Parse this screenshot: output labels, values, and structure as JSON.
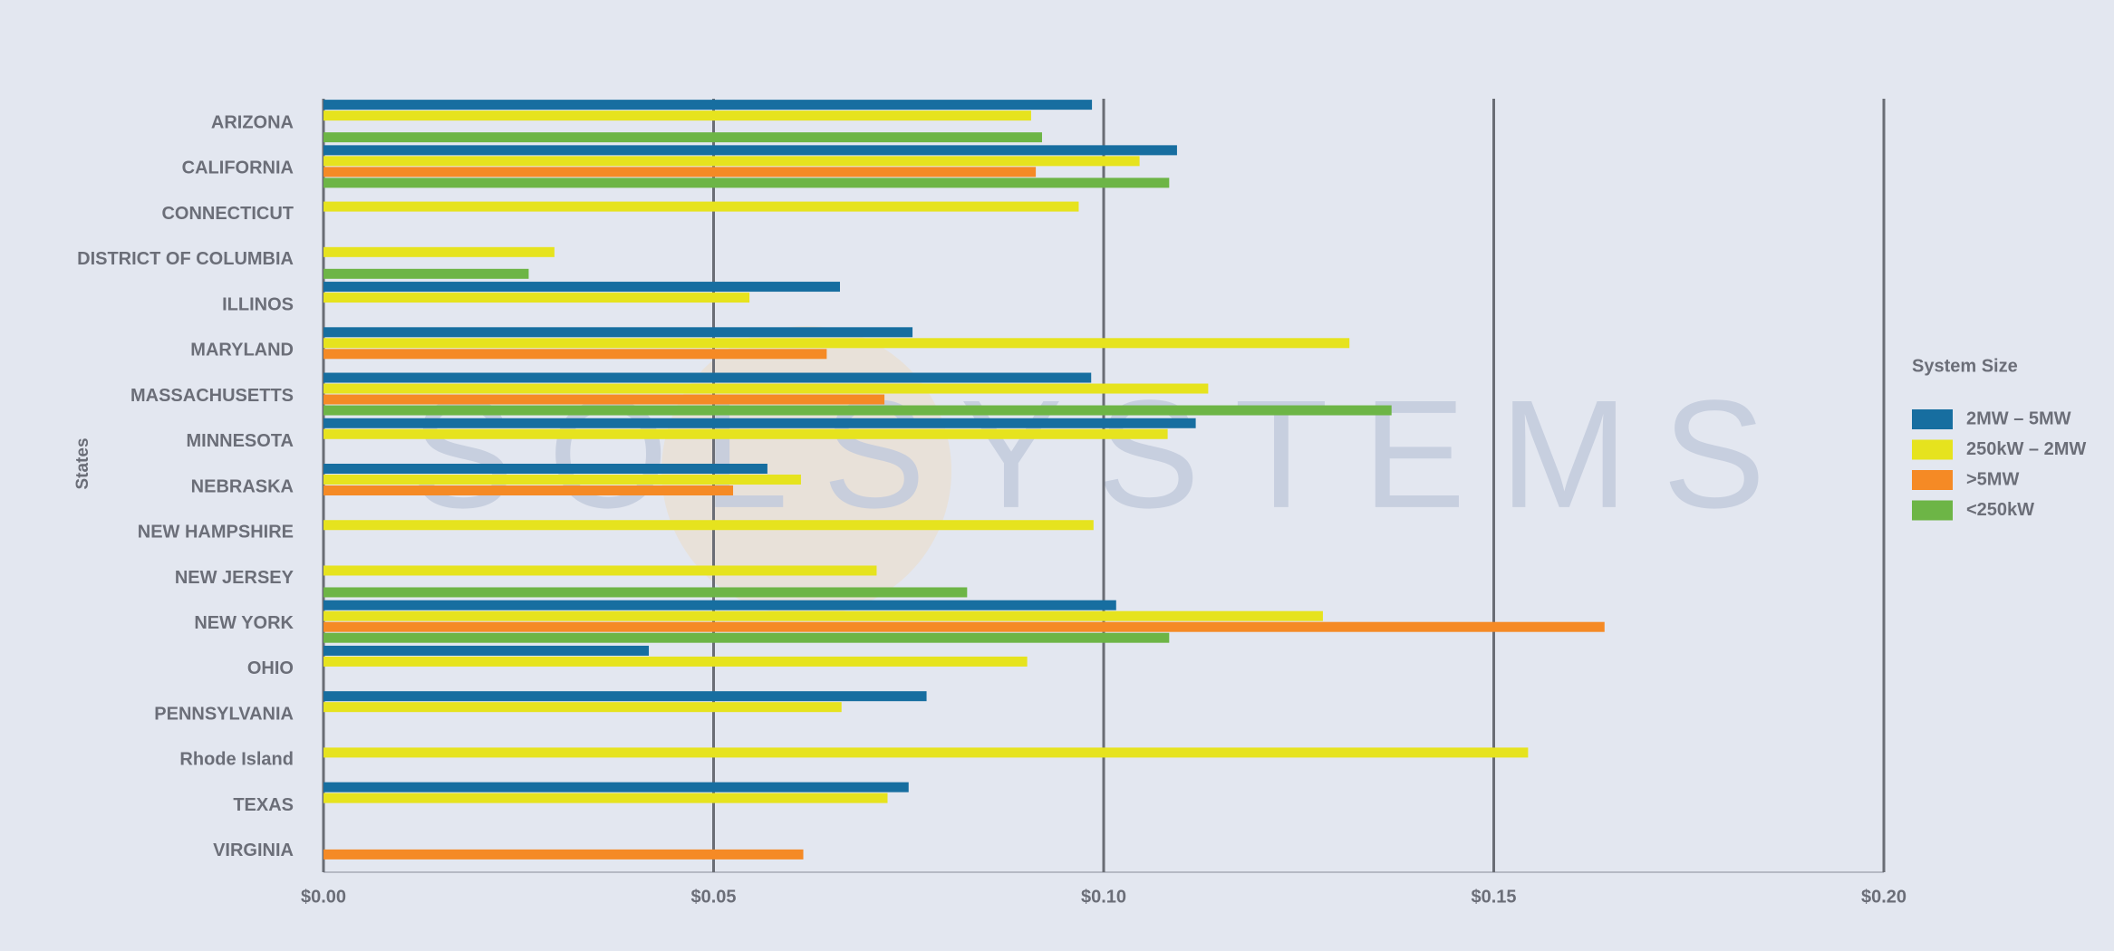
{
  "chart_data": {
    "type": "hbar",
    "watermark": "SOLSYSTEMS",
    "y_label": "States",
    "legend_title": "System Size",
    "legend": "right",
    "grid": true,
    "categories": [
      "ARIZONA",
      "CALIFORNIA",
      "CONNECTICUT",
      "DISTRICT OF COLUMBIA",
      "ILLINOS",
      "MARYLAND",
      "MASSACHUSETTS",
      "MINNESOTA",
      "NEBRASKA",
      "NEW HAMPSHIRE",
      "NEW JERSEY",
      "NEW YORK",
      "OHIO",
      "PENNSYLVANIA",
      "Rhode Island",
      "TEXAS",
      "VIRGINIA"
    ],
    "series": [
      {
        "name": "2MW – 5MW",
        "color": "#176ea0",
        "values": [
          0.0985,
          0.1094,
          null,
          null,
          0.0662,
          0.0755,
          0.0984,
          0.1118,
          0.0569,
          null,
          null,
          0.1016,
          0.0417,
          0.0773,
          null,
          0.075,
          null
        ]
      },
      {
        "name": "250kW – 2MW",
        "color": "#e6e31e",
        "values": [
          0.0907,
          0.1046,
          0.0968,
          0.0296,
          0.0546,
          0.1315,
          0.1134,
          0.1082,
          0.0612,
          0.0987,
          0.0709,
          0.1281,
          0.0902,
          0.0664,
          0.1544,
          0.0723,
          null
        ]
      },
      {
        "name": ">5MW",
        "color": "#f58a25",
        "values": [
          null,
          0.0913,
          null,
          null,
          null,
          0.0645,
          0.0719,
          null,
          0.0525,
          null,
          null,
          0.1642,
          null,
          null,
          null,
          null,
          0.0615
        ]
      },
      {
        "name": "<250kW",
        "color": "#6db546",
        "values": [
          0.0921,
          0.1084,
          null,
          0.0263,
          null,
          null,
          0.1369,
          null,
          null,
          null,
          0.0825,
          0.1084,
          null,
          null,
          null,
          null,
          null
        ]
      }
    ],
    "xlim": [
      0,
      0.2
    ],
    "xticks": [
      {
        "value": 0,
        "label": "$0.00"
      },
      {
        "value": 0.05,
        "label": "$0.05"
      },
      {
        "value": 0.1,
        "label": "$0.10"
      },
      {
        "value": 0.15,
        "label": "$0.15"
      },
      {
        "value": 0.2,
        "label": "$0.20"
      }
    ]
  }
}
